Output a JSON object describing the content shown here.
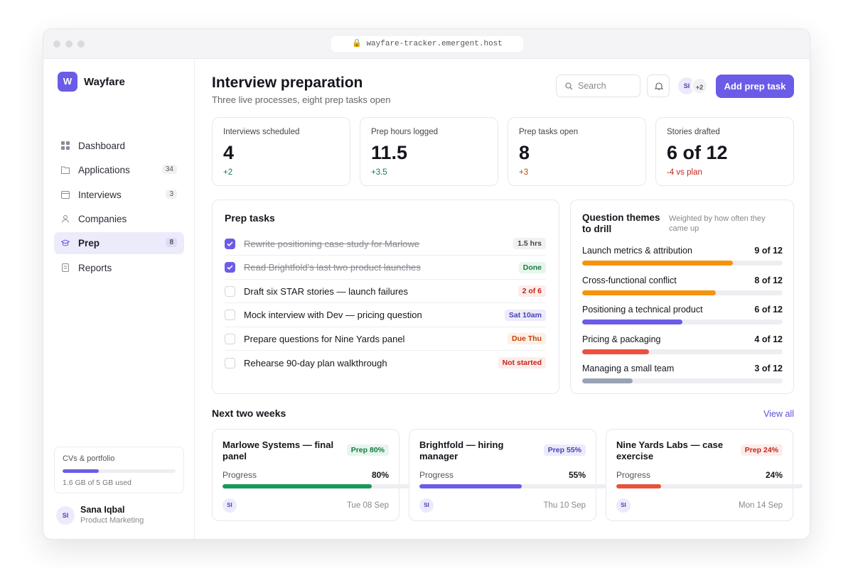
{
  "browser": {
    "url": "wayfare-tracker.emergent.host"
  },
  "sidebar": {
    "brand_initial": "W",
    "brand": "Wayfare",
    "nav": [
      {
        "label": "Dashboard"
      },
      {
        "label": "Applications",
        "count": 34
      },
      {
        "label": "Interviews",
        "count": 3
      },
      {
        "label": "Companies"
      },
      {
        "label": "Prep",
        "count": 8,
        "active": true
      },
      {
        "label": "Reports"
      }
    ],
    "storage": {
      "title": "CVs & portfolio",
      "used": 1.6,
      "total": 5,
      "label": "1.6 GB of 5 GB used"
    },
    "user": {
      "initials": "SI",
      "name": "Sana Iqbal",
      "role": "Product Marketing"
    }
  },
  "header": {
    "title": "Interview preparation",
    "subtitle": "Three live processes, eight prep tasks open",
    "search": "Search",
    "avatar": "SI",
    "more": "+2",
    "button": "Add prep task"
  },
  "stats": [
    {
      "label": "Interviews scheduled",
      "value": 4,
      "delta": "+2"
    },
    {
      "label": "Prep hours logged",
      "value": 11.5,
      "delta": "+3.5"
    },
    {
      "label": "Prep tasks open",
      "value": 8,
      "delta": "+3"
    },
    {
      "label": "Stories drafted",
      "value": "6 of 12",
      "delta": "-4 vs plan"
    }
  ],
  "tasks": {
    "title": "Prep tasks",
    "items": [
      {
        "text": "Rewrite positioning case study for Marlowe",
        "badge": "1.5 hrs",
        "checked": true
      },
      {
        "text": "Read Brightfold's last two product launches",
        "badge": "Done",
        "checked": true
      },
      {
        "text": "Draft six STAR stories — launch failures",
        "badge": "2 of 6",
        "checked": false
      },
      {
        "text": "Mock interview with Dev — pricing question",
        "badge": "Sat 10am",
        "checked": false
      },
      {
        "text": "Prepare questions for Nine Yards panel",
        "badge": "Due Thu",
        "checked": false
      },
      {
        "text": "Rehearse 90-day plan walkthrough",
        "badge": "Not started",
        "checked": false
      }
    ]
  },
  "themes": {
    "title": "Question themes to drill",
    "note": "Weighted by how often they came up",
    "items": [
      {
        "name": "Launch metrics & attribution",
        "value": 9,
        "total": 12,
        "label": "9 of 12",
        "color": "#f7930a"
      },
      {
        "name": "Cross-functional conflict",
        "value": 8,
        "total": 12,
        "label": "8 of 12",
        "color": "#f7930a"
      },
      {
        "name": "Positioning a technical product",
        "value": 6,
        "total": 12,
        "label": "6 of 12",
        "color": "#6b5ce7"
      },
      {
        "name": "Pricing & packaging",
        "value": 4,
        "total": 12,
        "label": "4 of 12",
        "color": "#ef4f3f"
      },
      {
        "name": "Managing a small team",
        "value": 3,
        "total": 12,
        "label": "3 of 12",
        "color": "#9aa3b5"
      }
    ]
  },
  "upcoming": {
    "title": "Next two weeks",
    "link": "View all",
    "items": [
      {
        "name": "Marlowe Systems — final panel",
        "badge": "Prep 80%",
        "progress_label": "Progress",
        "progress": 80,
        "value_label": "80%",
        "avatar": "SI",
        "date": "Tue 08 Sep",
        "color": "#17995b"
      },
      {
        "name": "Brightfold — hiring manager",
        "badge": "Prep 55%",
        "progress_label": "Progress",
        "progress": 55,
        "value_label": "55%",
        "avatar": "SI",
        "date": "Thu 10 Sep",
        "color": "#6b5ce7"
      },
      {
        "name": "Nine Yards Labs — case exercise",
        "badge": "Prep 24%",
        "progress_label": "Progress",
        "progress": 24,
        "value_label": "24%",
        "avatar": "SI",
        "date": "Mon 14 Sep",
        "color": "#e5533d"
      }
    ]
  }
}
